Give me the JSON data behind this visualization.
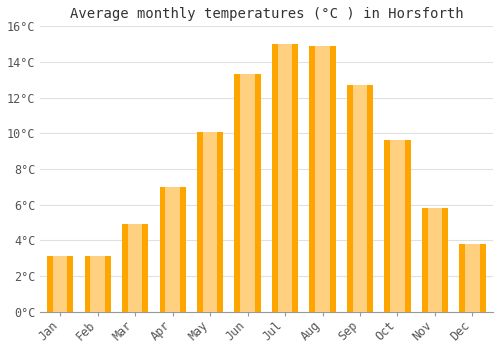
{
  "title": "Average monthly temperatures (°C ) in Horsforth",
  "months": [
    "Jan",
    "Feb",
    "Mar",
    "Apr",
    "May",
    "Jun",
    "Jul",
    "Aug",
    "Sep",
    "Oct",
    "Nov",
    "Dec"
  ],
  "values": [
    3.1,
    3.1,
    4.9,
    7.0,
    10.1,
    13.3,
    15.0,
    14.9,
    12.7,
    9.6,
    5.8,
    3.8
  ],
  "bar_color": "#FFA500",
  "bar_color_light": "#FFD080",
  "ylim": [
    0,
    16
  ],
  "yticks": [
    0,
    2,
    4,
    6,
    8,
    10,
    12,
    14,
    16
  ],
  "ytick_labels": [
    "0°C",
    "2°C",
    "4°C",
    "6°C",
    "8°C",
    "10°C",
    "12°C",
    "14°C",
    "16°C"
  ],
  "background_color": "#FFFFFF",
  "plot_bg_color": "#FFFFFF",
  "grid_color": "#E0E0E0",
  "title_fontsize": 10,
  "tick_fontsize": 8.5
}
